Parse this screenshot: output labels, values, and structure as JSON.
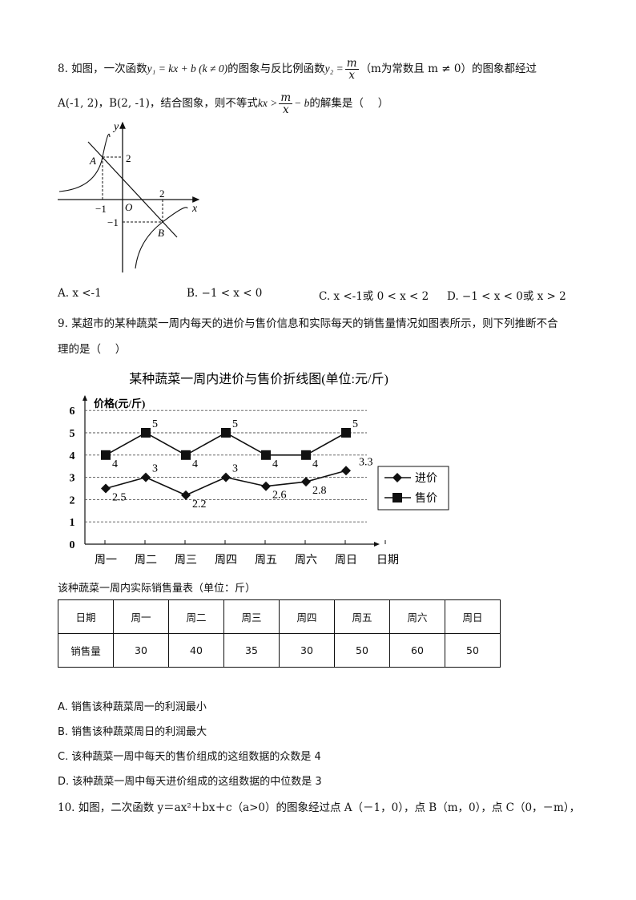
{
  "q8": {
    "stem_1a": "8. 如图，一次函数",
    "func1": "y₁ = kx + b (k ≠ 0)",
    "stem_1b": "的图象与反比例函数",
    "y2": "y₂ =",
    "num": "m",
    "den": "x",
    "stem_1c": "（m为常数且 m ≠ 0）的图象都经过",
    "stem_2a": "A(-1, 2)，B(2, -1)，结合图象，则不等式",
    "kx": "kx >",
    "minus_b": "− b",
    "stem_2b": "的解集是（　 ）",
    "figure": {
      "y_label": "y",
      "x_label": "x",
      "origin": "O",
      "point_a": "A",
      "point_b": "B",
      "tick_y2": "2",
      "tick_xm1": "−1",
      "tick_x2": "2",
      "tick_ym1": "−1"
    },
    "options": [
      "A.  x <-1",
      "B.  −1 < x < 0",
      "C.  x <-1或 0 < x < 2",
      "D.  −1 < x < 0或 x > 2"
    ]
  },
  "q9": {
    "stem_1": "9. 某超市的某种蔬菜一周内每天的进价与售价信息和实际每天的销售量情况如图表所示，则下列推断不合",
    "stem_2": "理的是（　 ）",
    "table_caption": "该种蔬菜一周内实际销售量表（单位：斤）",
    "table": {
      "header": [
        "日期",
        "周一",
        "周二",
        "周三",
        "周四",
        "周五",
        "周六",
        "周日"
      ],
      "row": [
        "销售量",
        "30",
        "40",
        "35",
        "30",
        "50",
        "60",
        "50"
      ]
    },
    "options": [
      "A. 销售该种蔬菜周一的利润最小",
      "B. 销售该种蔬菜周日的利润最大",
      "C. 该种蔬菜一周中每天的售价组成的这组数据的众数是 4",
      "D. 该种蔬菜一周中每天进价组成的这组数据的中位数是 3"
    ]
  },
  "chart_data": {
    "type": "line",
    "title": "某种蔬菜一周内进价与售价折线图(单位:元/斤)",
    "ylabel": "价格(元/斤)",
    "xlabel": "日期",
    "categories": [
      "周一",
      "周二",
      "周三",
      "周四",
      "周五",
      "周六",
      "周日"
    ],
    "yticks": [
      "0",
      "1",
      "2",
      "3",
      "4",
      "5",
      "6"
    ],
    "ylim": [
      0,
      6
    ],
    "grid": "dashed horizontal",
    "legend": "right",
    "series": [
      {
        "name": "进价",
        "marker": "diamond",
        "values": [
          2.5,
          3,
          2.2,
          3,
          2.6,
          2.8,
          3.3
        ],
        "labels": [
          "2.5",
          "3",
          "2.2",
          "3",
          "2.6",
          "2.8",
          "3.3"
        ]
      },
      {
        "name": "售价",
        "marker": "square",
        "values": [
          4,
          5,
          4,
          5,
          4,
          4,
          5
        ],
        "labels": [
          "4",
          "5",
          "4",
          "5",
          "4",
          "4",
          "5"
        ]
      }
    ]
  },
  "q10": {
    "stem": "10. 如图，二次函数 y＝ax²＋bx＋c（a>0）的图象经过点 A（－1，0），点 B（m，0），点 C（0，－m），"
  }
}
